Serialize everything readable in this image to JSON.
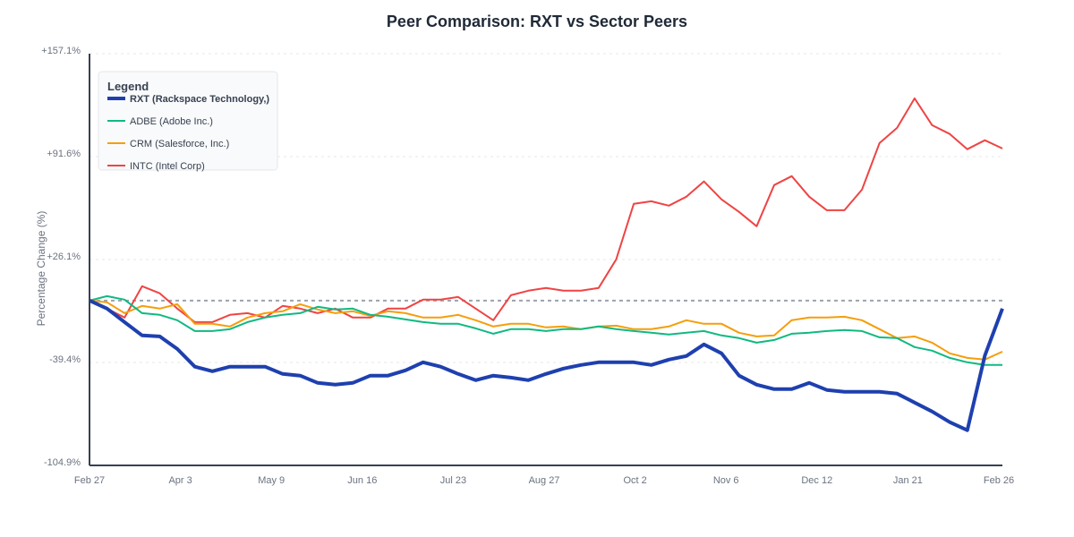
{
  "chart_data": {
    "type": "line",
    "title": "Peer Comparison: RXT vs Sector Peers",
    "xlabel": "",
    "ylabel": "Percentage Change (%)",
    "ylim": [
      -104.9,
      157.1
    ],
    "y_ticks": [
      "+157.1%",
      "+91.6%",
      "+26.1%",
      "-39.4%",
      "-104.9%"
    ],
    "y_tick_values": [
      157.1,
      91.6,
      26.1,
      -39.4,
      -104.9
    ],
    "x_ticks": [
      "Feb 27",
      "Apr 3",
      "May 9",
      "Jun 16",
      "Jul 23",
      "Aug 27",
      "Oct 2",
      "Nov 6",
      "Dec 12",
      "Jan 21",
      "Feb 26"
    ],
    "baseline": 0,
    "grid": true,
    "legend": {
      "title": "Legend",
      "placement": "top-left"
    },
    "series": [
      {
        "name": "RXT (Rackspace Technology,)",
        "color": "#1e40af",
        "highlight": true,
        "values": [
          0,
          -5.1,
          -13.7,
          -22.2,
          -22.8,
          -30.8,
          -42.1,
          -45.0,
          -42.1,
          -42.1,
          -42.1,
          -46.7,
          -47.8,
          -52.4,
          -53.5,
          -52.4,
          -47.8,
          -47.8,
          -44.4,
          -39.3,
          -42.1,
          -46.7,
          -50.7,
          -47.8,
          -49.0,
          -50.7,
          -46.7,
          -43.3,
          -41.0,
          -39.3,
          -39.3,
          -39.3,
          -41.0,
          -37.6,
          -35.3,
          -27.9,
          -33.6,
          -47.8,
          -53.5,
          -56.4,
          -56.4,
          -52.4,
          -56.9,
          -58.1,
          -58.1,
          -58.1,
          -59.2,
          -64.9,
          -70.6,
          -77.4,
          -82.5,
          -35.0,
          -5.1
        ]
      },
      {
        "name": "ADBE (Adobe Inc.)",
        "color": "#10b981",
        "values": [
          0,
          2.8,
          0.6,
          -8.0,
          -9.1,
          -12.5,
          -19.4,
          -19.4,
          -18.2,
          -13.7,
          -10.8,
          -9.1,
          -8.0,
          -4.0,
          -5.7,
          -5.1,
          -9.1,
          -10.3,
          -12.0,
          -13.7,
          -14.8,
          -14.8,
          -17.7,
          -21.1,
          -18.2,
          -18.2,
          -19.4,
          -18.2,
          -18.2,
          -16.5,
          -18.2,
          -19.4,
          -20.5,
          -21.6,
          -20.5,
          -19.4,
          -22.2,
          -23.9,
          -26.8,
          -25.1,
          -21.1,
          -20.5,
          -19.4,
          -18.8,
          -19.4,
          -23.4,
          -23.9,
          -29.6,
          -31.9,
          -36.5,
          -39.3,
          -41.0,
          -41.0
        ]
      },
      {
        "name": "CRM (Salesforce, Inc.)",
        "color": "#f59e0b",
        "values": [
          0,
          -1.1,
          -8.0,
          -3.4,
          -5.1,
          -2.3,
          -14.8,
          -14.8,
          -16.5,
          -10.8,
          -8.0,
          -6.8,
          -2.3,
          -5.7,
          -8.0,
          -6.8,
          -9.7,
          -6.8,
          -8.0,
          -10.8,
          -10.8,
          -9.1,
          -12.5,
          -16.5,
          -14.8,
          -14.8,
          -17.1,
          -16.5,
          -18.2,
          -16.5,
          -16.0,
          -18.2,
          -18.2,
          -16.5,
          -12.5,
          -14.8,
          -14.8,
          -20.5,
          -22.8,
          -22.2,
          -12.5,
          -10.8,
          -10.8,
          -10.3,
          -12.5,
          -18.2,
          -23.9,
          -22.8,
          -26.8,
          -33.6,
          -36.5,
          -37.6,
          -32.5
        ]
      },
      {
        "name": "INTC (Intel Corp)",
        "color": "#ef4444",
        "values": [
          0,
          -5.1,
          -10.8,
          9.1,
          4.6,
          -5.1,
          -13.7,
          -13.7,
          -9.1,
          -8.0,
          -10.8,
          -3.4,
          -5.1,
          -8.0,
          -5.1,
          -10.8,
          -10.8,
          -5.1,
          -5.1,
          0.6,
          0.6,
          2.3,
          -5.1,
          -12.5,
          3.4,
          6.3,
          8.0,
          6.3,
          6.3,
          8.0,
          26.2,
          61.5,
          63.2,
          60.4,
          66.1,
          75.8,
          64.4,
          56.4,
          47.3,
          73.5,
          79.2,
          66.1,
          57.5,
          57.5,
          70.6,
          100.2,
          109.9,
          128.7,
          111.6,
          106.0,
          96.3,
          102.0,
          96.8
        ]
      }
    ]
  }
}
